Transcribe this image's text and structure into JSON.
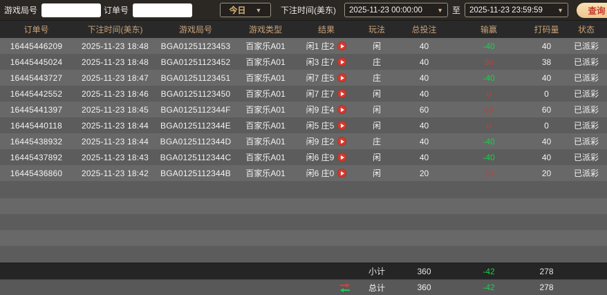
{
  "filter_bar": {
    "game_round_label": "游戏局号",
    "order_no_label": "订单号",
    "game_round_value": "",
    "order_no_value": "",
    "period_selected": "今日",
    "bet_time_label": "下注时间(美东)",
    "start_time": "2025-11-23 00:00:00",
    "to_label": "至",
    "end_time": "2025-11-23 23:59:59",
    "query_button_label": "查询",
    "caret": "▼"
  },
  "table": {
    "headers": [
      "订单号",
      "下注时间(美东)",
      "游戏局号",
      "游戏类型",
      "结果",
      "玩法",
      "总投注",
      "输赢",
      "打码量",
      "状态"
    ],
    "empty_row_count": 5,
    "rows": [
      {
        "order_no": "16445446209",
        "bet_time": "2025-11-23 18:48",
        "round_no": "BGA01251123453",
        "game_type": "百家乐A01",
        "result": "闲1 庄2",
        "play": "闲",
        "total_bet": "40",
        "win_loss": "-40",
        "win_loss_color": "green",
        "turnover": "40",
        "status": "已派彩"
      },
      {
        "order_no": "16445445024",
        "bet_time": "2025-11-23 18:48",
        "round_no": "BGA01251123452",
        "game_type": "百家乐A01",
        "result": "闲3 庄7",
        "play": "庄",
        "total_bet": "40",
        "win_loss": "38",
        "win_loss_color": "red",
        "turnover": "38",
        "status": "已派彩"
      },
      {
        "order_no": "16445443727",
        "bet_time": "2025-11-23 18:47",
        "round_no": "BGA01251123451",
        "game_type": "百家乐A01",
        "result": "闲7 庄5",
        "play": "庄",
        "total_bet": "40",
        "win_loss": "-40",
        "win_loss_color": "green",
        "turnover": "40",
        "status": "已派彩"
      },
      {
        "order_no": "16445442552",
        "bet_time": "2025-11-23 18:46",
        "round_no": "BGA01251123450",
        "game_type": "百家乐A01",
        "result": "闲7 庄7",
        "play": "闲",
        "total_bet": "40",
        "win_loss": "0",
        "win_loss_color": "red",
        "turnover": "0",
        "status": "已派彩"
      },
      {
        "order_no": "16445441397",
        "bet_time": "2025-11-23 18:45",
        "round_no": "BGA0125112344F",
        "game_type": "百家乐A01",
        "result": "闲9 庄4",
        "play": "闲",
        "total_bet": "60",
        "win_loss": "60",
        "win_loss_color": "red",
        "turnover": "60",
        "status": "已派彩"
      },
      {
        "order_no": "16445440118",
        "bet_time": "2025-11-23 18:44",
        "round_no": "BGA0125112344E",
        "game_type": "百家乐A01",
        "result": "闲5 庄5",
        "play": "闲",
        "total_bet": "40",
        "win_loss": "0",
        "win_loss_color": "red",
        "turnover": "0",
        "status": "已派彩"
      },
      {
        "order_no": "16445438932",
        "bet_time": "2025-11-23 18:44",
        "round_no": "BGA0125112344D",
        "game_type": "百家乐A01",
        "result": "闲9 庄2",
        "play": "庄",
        "total_bet": "40",
        "win_loss": "-40",
        "win_loss_color": "green",
        "turnover": "40",
        "status": "已派彩"
      },
      {
        "order_no": "16445437892",
        "bet_time": "2025-11-23 18:43",
        "round_no": "BGA0125112344C",
        "game_type": "百家乐A01",
        "result": "闲6 庄9",
        "play": "闲",
        "total_bet": "40",
        "win_loss": "-40",
        "win_loss_color": "green",
        "turnover": "40",
        "status": "已派彩"
      },
      {
        "order_no": "16445436860",
        "bet_time": "2025-11-23 18:42",
        "round_no": "BGA0125112344B",
        "game_type": "百家乐A01",
        "result": "闲6 庄0",
        "play": "闲",
        "total_bet": "20",
        "win_loss": "20",
        "win_loss_color": "red",
        "turnover": "20",
        "status": "已派彩"
      }
    ],
    "subtotal": {
      "label": "小计",
      "total_bet": "360",
      "win_loss": "-42",
      "turnover": "278"
    },
    "total": {
      "label": "总计",
      "total_bet": "360",
      "win_loss": "-42",
      "turnover": "278"
    }
  },
  "colors": {
    "win_red": "#b04540",
    "loss_green": "#1ecb4f",
    "header_gold": "#c9a178",
    "query_button_bg": "#f2d3a1",
    "query_button_text": "#c23a2e",
    "play_icon_bg": "#d23b30"
  }
}
